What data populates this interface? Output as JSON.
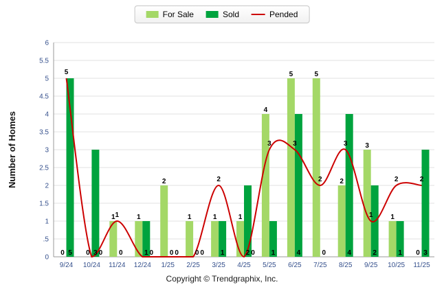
{
  "chart_data": {
    "type": "bar",
    "title": "",
    "categories": [
      "9/24",
      "10/24",
      "11/24",
      "12/24",
      "1/25",
      "2/25",
      "3/25",
      "4/25",
      "5/25",
      "6/25",
      "7/25",
      "8/25",
      "9/25",
      "10/25",
      "11/25"
    ],
    "series": [
      {
        "name": "For Sale",
        "type": "bar",
        "color": "#A4D867",
        "values": [
          0,
          0,
          1,
          1,
          2,
          1,
          1,
          1,
          4,
          5,
          5,
          2,
          3,
          1,
          0
        ]
      },
      {
        "name": "Sold",
        "type": "bar",
        "color": "#00A33E",
        "values": [
          5,
          3,
          0,
          1,
          0,
          0,
          1,
          2,
          1,
          4,
          0,
          4,
          2,
          1,
          3
        ]
      },
      {
        "name": "Pended",
        "type": "line",
        "color": "#CC0000",
        "values": [
          5,
          0,
          1,
          0,
          0,
          0,
          2,
          0,
          3,
          3,
          2,
          3,
          1,
          2,
          2
        ]
      }
    ],
    "xlabel": "",
    "ylabel": "Number of Homes",
    "ylim": [
      0,
      6
    ],
    "ytick_step": 0.5,
    "yticks": [
      "6",
      "5.5",
      "5",
      "4.5",
      "4",
      "3.5",
      "3",
      "2.5",
      "2",
      "1.5",
      "1",
      ".5",
      "0"
    ],
    "grid": true,
    "legend_position": "top"
  },
  "legend": {
    "items": [
      {
        "label": "For Sale",
        "color": "#A4D867",
        "type": "bar"
      },
      {
        "label": "Sold",
        "color": "#00A33E",
        "type": "bar"
      },
      {
        "label": "Pended",
        "color": "#CC0000",
        "type": "line"
      }
    ]
  },
  "footer": {
    "text": "Copyright © Trendgraphix, Inc."
  }
}
